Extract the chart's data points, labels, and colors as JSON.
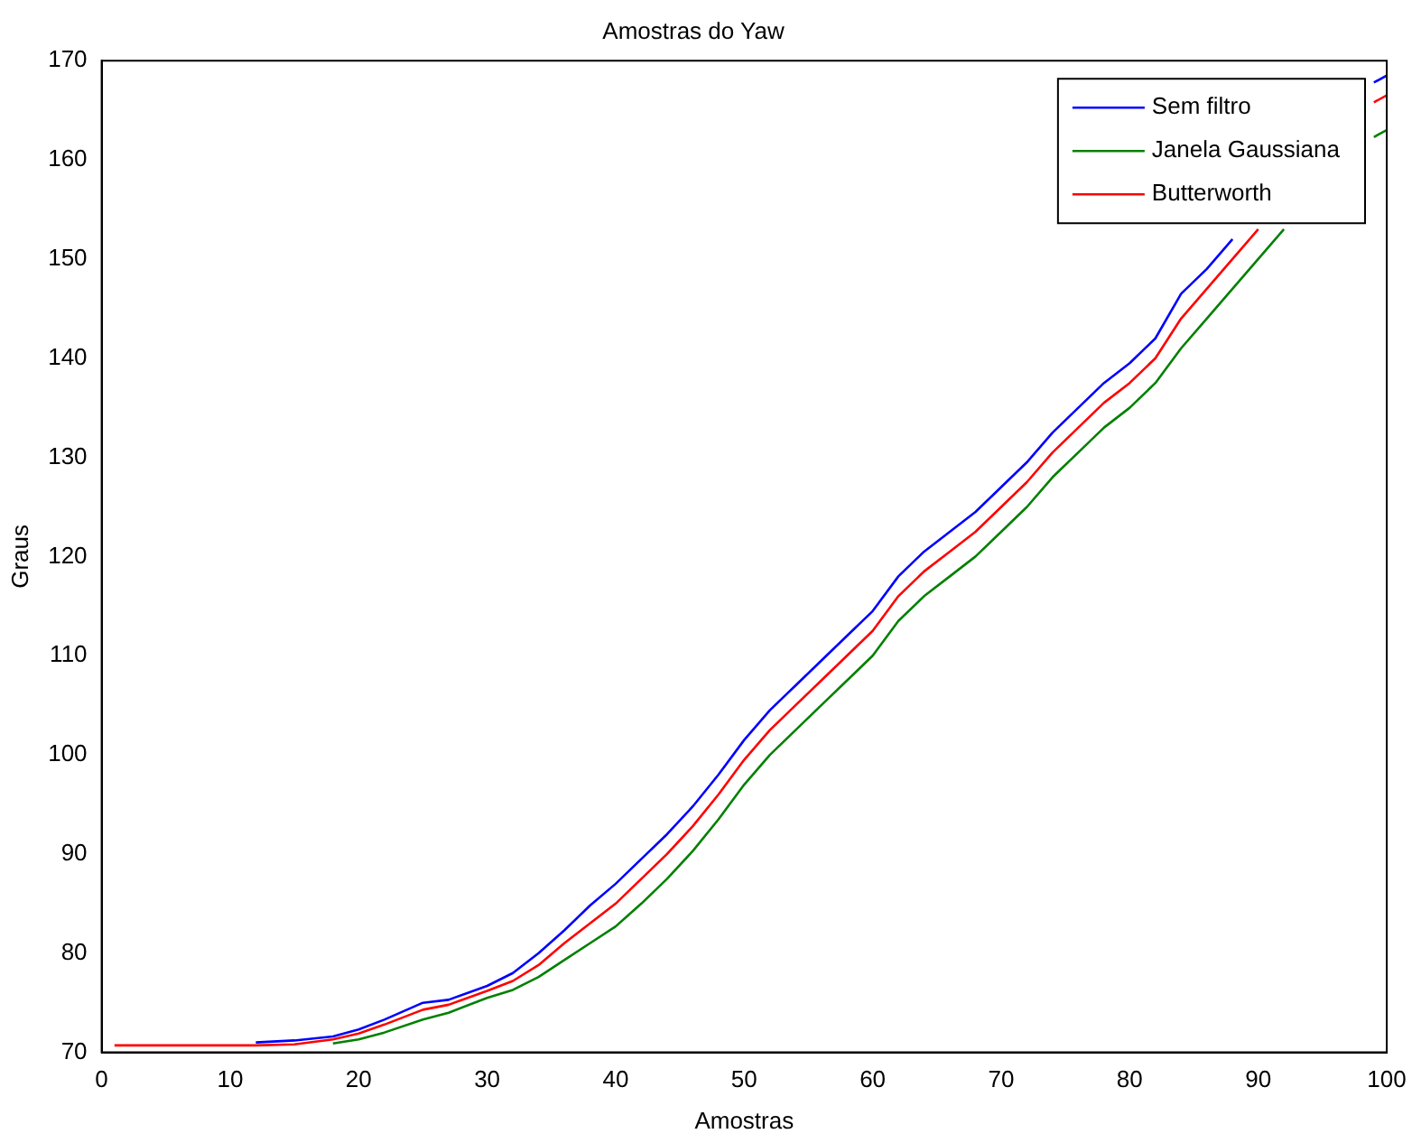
{
  "chart_data": {
    "type": "line",
    "title": "Amostras do Yaw",
    "xlabel": "Amostras",
    "ylabel": "Graus",
    "x": [
      1,
      5,
      10,
      12,
      15,
      18,
      20,
      22,
      25,
      27,
      30,
      32,
      34,
      36,
      38,
      40,
      42,
      44,
      46,
      48,
      50,
      52,
      54,
      56,
      58,
      60,
      62,
      64,
      66,
      68,
      70,
      72,
      74,
      76,
      78,
      80,
      82,
      84,
      86,
      88,
      90,
      92,
      94,
      96,
      98,
      99,
      100
    ],
    "series": [
      {
        "name": "Sem filtro",
        "color": "#0000ff",
        "values": [
          null,
          null,
          null,
          71.0,
          71.2,
          71.6,
          72.3,
          73.3,
          75.0,
          75.3,
          76.7,
          78.0,
          80.0,
          82.3,
          84.8,
          87,
          89.5,
          92,
          94.8,
          98,
          101.5,
          104.5,
          107,
          109.5,
          112,
          114.5,
          118,
          120.5,
          122.5,
          124.5,
          127,
          129.5,
          132.5,
          135,
          137.5,
          139.5,
          142,
          146.5,
          149,
          152,
          null,
          null,
          null,
          null,
          null,
          167.8,
          168.5
        ]
      },
      {
        "name": "Janela Gaussiana",
        "color": "#008000",
        "values": [
          null,
          null,
          null,
          null,
          null,
          70.9,
          71.3,
          72.0,
          73.3,
          74.0,
          75.5,
          76.3,
          77.6,
          79.3,
          81,
          82.7,
          85,
          87.5,
          90.3,
          93.5,
          97,
          100,
          102.5,
          105,
          107.5,
          110,
          113.5,
          116,
          118,
          120,
          122.5,
          125,
          128,
          130.5,
          133,
          135,
          137.5,
          141,
          144,
          147,
          150,
          153,
          null,
          null,
          null,
          162.3,
          163
        ]
      },
      {
        "name": "Butterworth",
        "color": "#ff0000",
        "values": [
          70.7,
          70.7,
          70.7,
          70.7,
          70.8,
          71.3,
          71.9,
          72.8,
          74.3,
          74.8,
          76.2,
          77.2,
          78.8,
          81,
          83,
          85,
          87.5,
          90,
          92.8,
          96,
          99.5,
          102.5,
          105,
          107.5,
          110,
          112.5,
          116,
          118.5,
          120.5,
          122.5,
          125,
          127.5,
          130.5,
          133,
          135.5,
          137.5,
          140,
          144,
          147,
          150,
          153,
          null,
          null,
          null,
          null,
          165.8,
          166.5
        ]
      }
    ],
    "xlim": [
      0,
      100
    ],
    "xticks": [
      0,
      10,
      20,
      30,
      40,
      50,
      60,
      70,
      80,
      90,
      100
    ],
    "ylim": [
      70,
      170
    ],
    "yticks": [
      70,
      80,
      90,
      100,
      110,
      120,
      130,
      140,
      150,
      160,
      170
    ],
    "grid": false,
    "legend": "top right",
    "marker": "none",
    "line_style": "solid"
  }
}
